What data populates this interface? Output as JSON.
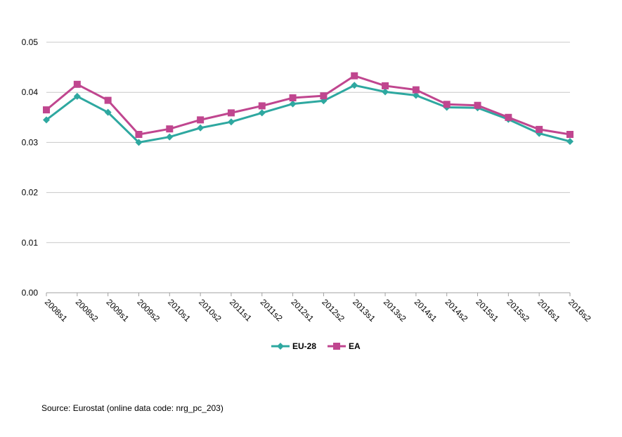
{
  "chart_data": {
    "type": "line",
    "title": "",
    "xlabel": "",
    "ylabel": "",
    "ylim": [
      0,
      0.05
    ],
    "yticks": [
      "0.00",
      "0.01",
      "0.02",
      "0.03",
      "0.04",
      "0.05"
    ],
    "grid": true,
    "legend_position": "bottom",
    "categories": [
      "2008s1",
      "2008s2",
      "2009s1",
      "2009s2",
      "2010s1",
      "2010s2",
      "2011s1",
      "2011s2",
      "2012s1",
      "2012s2",
      "2013s1",
      "2013s2",
      "2014s1",
      "2014s2",
      "2015s1",
      "2015s2",
      "2016s1",
      "2016s2"
    ],
    "series": [
      {
        "name": "EU-28",
        "color": "#2ea8a0",
        "marker": "diamond",
        "values": [
          0.0345,
          0.0392,
          0.036,
          0.03,
          0.0311,
          0.0329,
          0.0341,
          0.0359,
          0.0377,
          0.0383,
          0.0414,
          0.0401,
          0.0394,
          0.037,
          0.0369,
          0.0346,
          0.0318,
          0.0302
        ]
      },
      {
        "name": "EA",
        "color": "#c0468f",
        "marker": "square",
        "values": [
          0.0365,
          0.0416,
          0.0384,
          0.0316,
          0.0327,
          0.0345,
          0.0359,
          0.0373,
          0.0389,
          0.0393,
          0.0433,
          0.0413,
          0.0405,
          0.0376,
          0.0374,
          0.035,
          0.0326,
          0.0316
        ]
      }
    ]
  },
  "source_text": "Source: Eurostat (online data code: nrg_pc_203)"
}
